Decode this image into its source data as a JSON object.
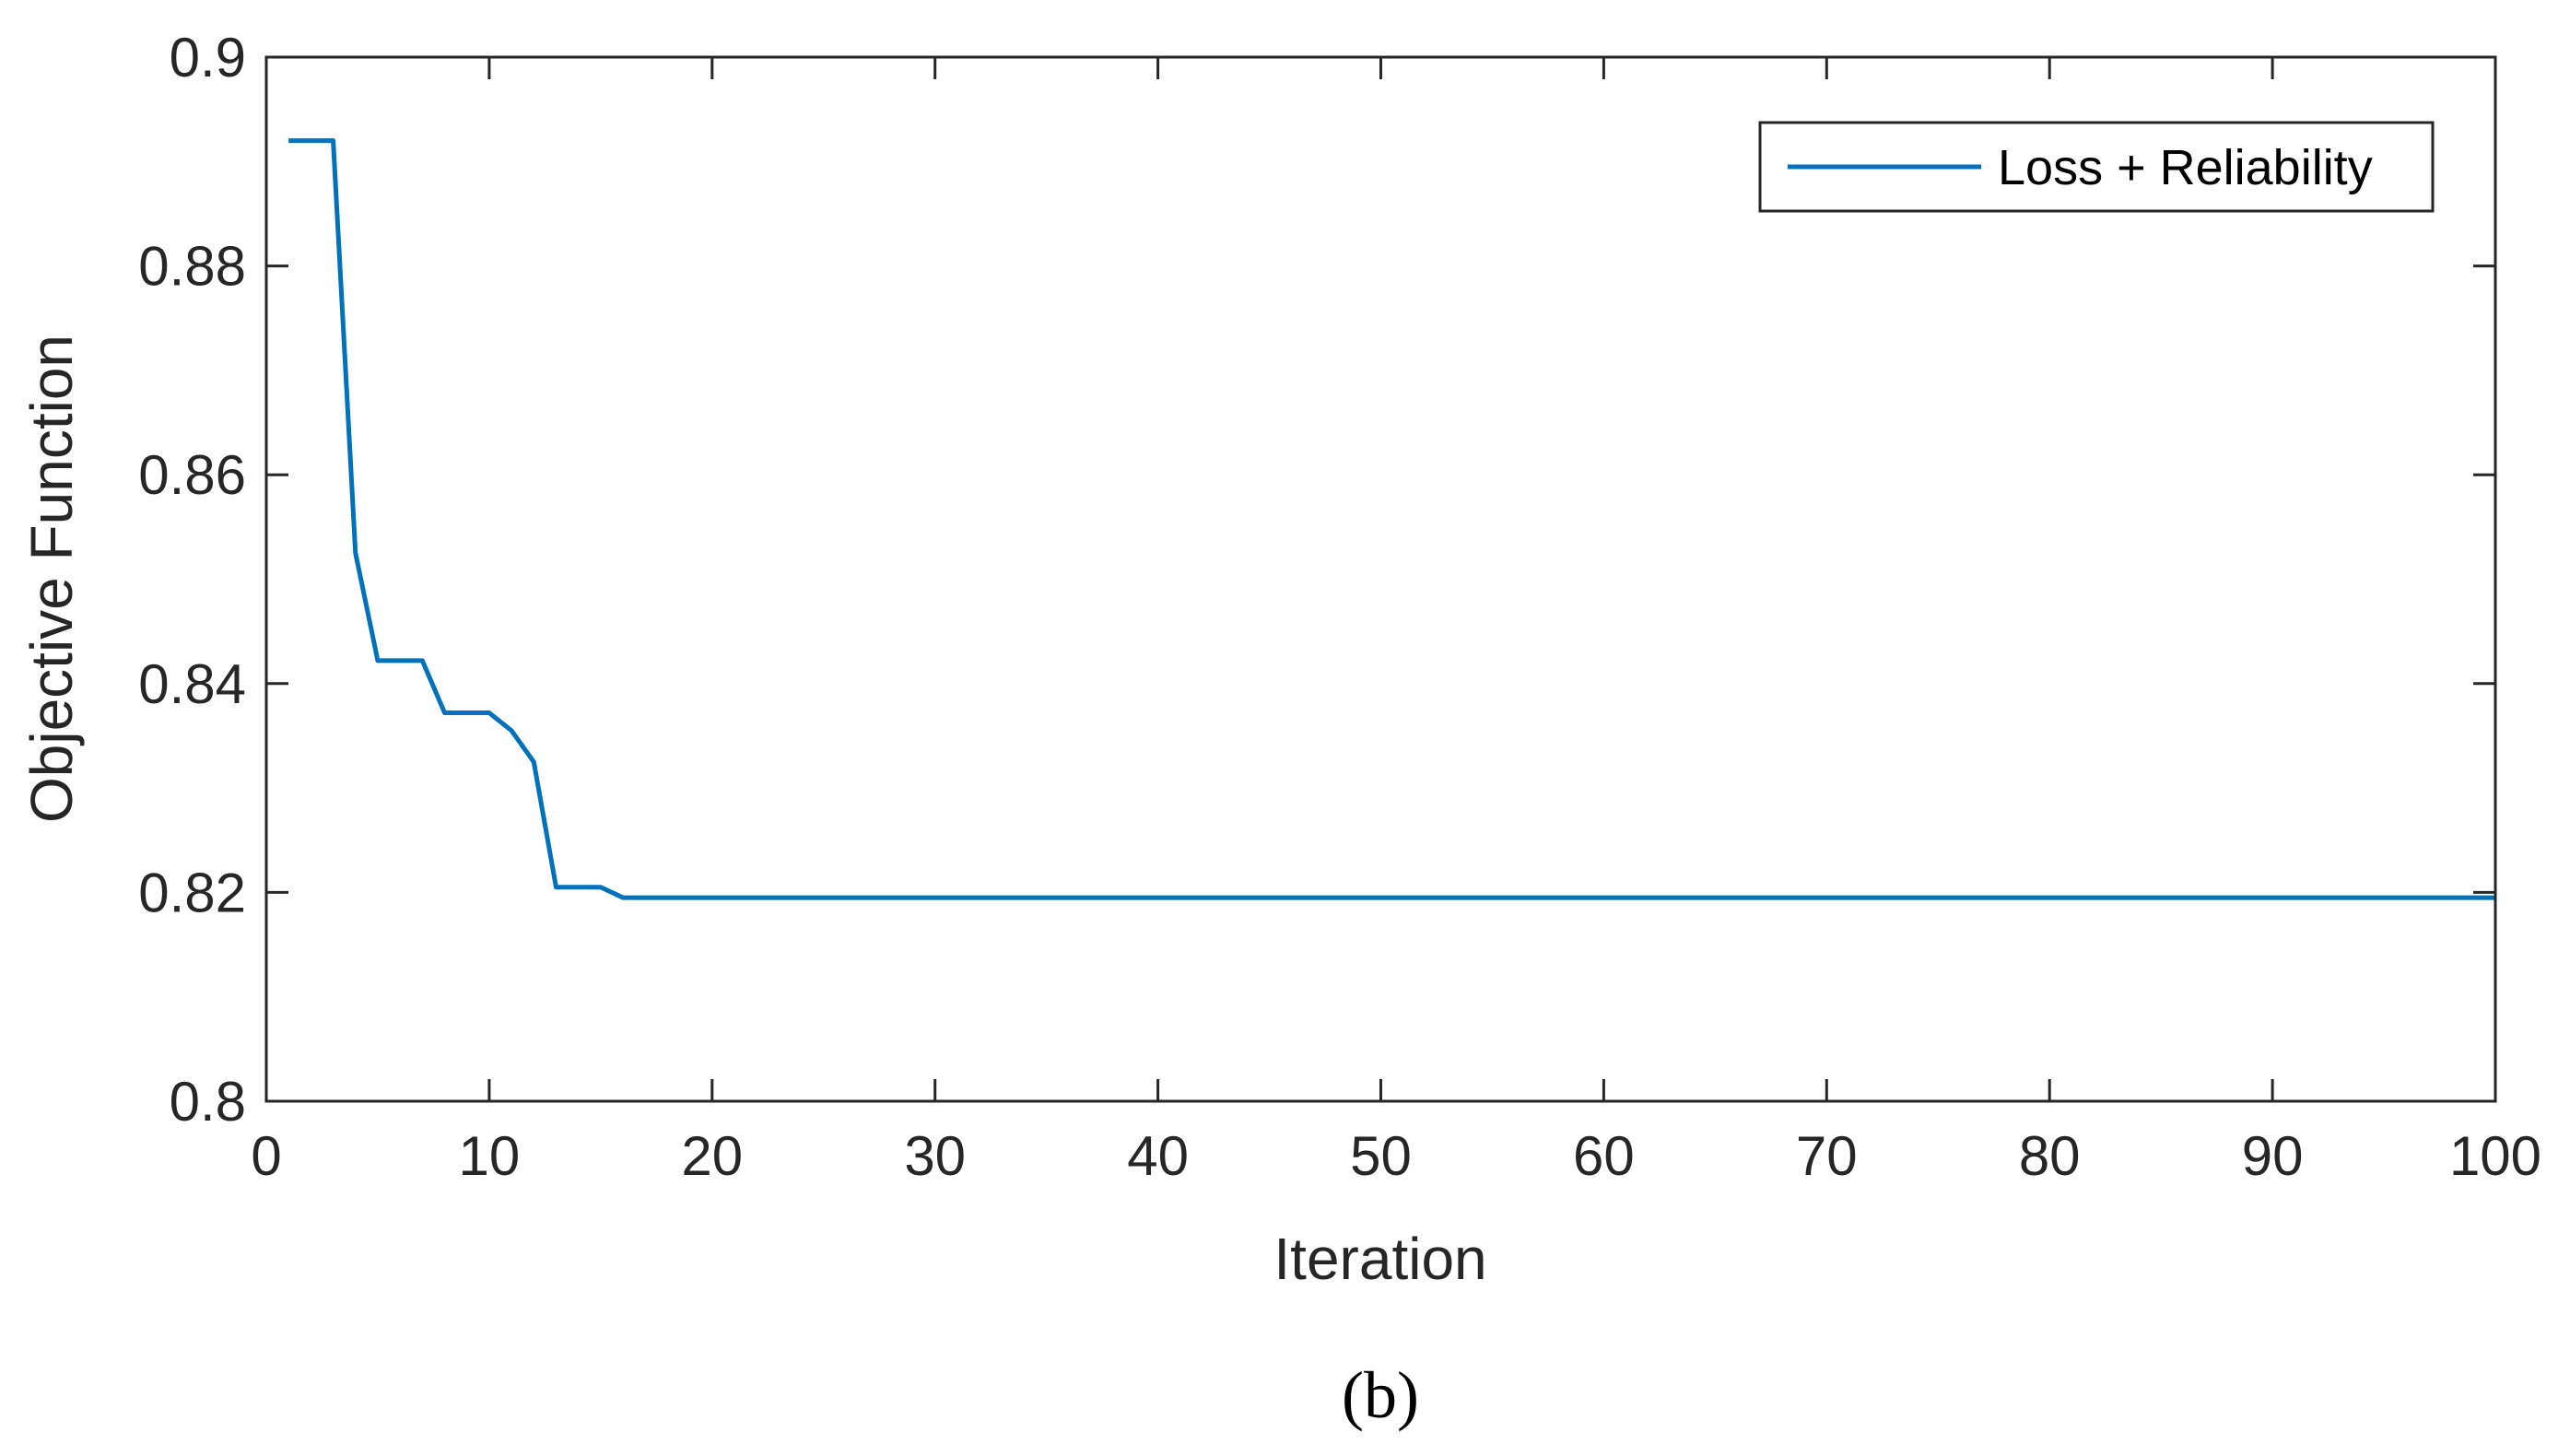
{
  "chart_data": {
    "type": "line",
    "xlabel": "Iteration",
    "ylabel": "Objective Function",
    "xlim": [
      0,
      100
    ],
    "ylim": [
      0.8,
      0.9
    ],
    "xticks": [
      0,
      10,
      20,
      30,
      40,
      50,
      60,
      70,
      80,
      90,
      100
    ],
    "xtick_labels": [
      "0",
      "10",
      "20",
      "30",
      "40",
      "50",
      "60",
      "70",
      "80",
      "90",
      "100"
    ],
    "yticks": [
      0.8,
      0.82,
      0.84,
      0.86,
      0.88,
      0.9
    ],
    "ytick_labels": [
      "0.8",
      "0.82",
      "0.84",
      "0.86",
      "0.88",
      "0.9"
    ],
    "grid": false,
    "legend_position": "top-right",
    "series": [
      {
        "name": "Loss + Reliability",
        "color": "#0072BD",
        "x": [
          1,
          2,
          3,
          4,
          5,
          6,
          7,
          8,
          9,
          10,
          11,
          12,
          13,
          14,
          15,
          16,
          17,
          18,
          19,
          20,
          21,
          22,
          23,
          24,
          25,
          26,
          27,
          28,
          29,
          30,
          31,
          32,
          33,
          34,
          35,
          36,
          37,
          38,
          39,
          40,
          41,
          42,
          43,
          44,
          45,
          46,
          47,
          48,
          49,
          50,
          51,
          52,
          53,
          54,
          55,
          56,
          57,
          58,
          59,
          60,
          61,
          62,
          63,
          64,
          65,
          66,
          67,
          68,
          69,
          70,
          71,
          72,
          73,
          74,
          75,
          76,
          77,
          78,
          79,
          80,
          81,
          82,
          83,
          84,
          85,
          86,
          87,
          88,
          89,
          90,
          91,
          92,
          93,
          94,
          95,
          96,
          97,
          98,
          99,
          100
        ],
        "y": [
          0.892,
          0.892,
          0.892,
          0.8525,
          0.8422,
          0.8422,
          0.8422,
          0.8372,
          0.8372,
          0.8372,
          0.8355,
          0.8325,
          0.8205,
          0.8205,
          0.8205,
          0.8195,
          0.8195,
          0.8195,
          0.8195,
          0.8195,
          0.8195,
          0.8195,
          0.8195,
          0.8195,
          0.8195,
          0.8195,
          0.8195,
          0.8195,
          0.8195,
          0.8195,
          0.8195,
          0.8195,
          0.8195,
          0.8195,
          0.8195,
          0.8195,
          0.8195,
          0.8195,
          0.8195,
          0.8195,
          0.8195,
          0.8195,
          0.8195,
          0.8195,
          0.8195,
          0.8195,
          0.8195,
          0.8195,
          0.8195,
          0.8195,
          0.8195,
          0.8195,
          0.8195,
          0.8195,
          0.8195,
          0.8195,
          0.8195,
          0.8195,
          0.8195,
          0.8195,
          0.8195,
          0.8195,
          0.8195,
          0.8195,
          0.8195,
          0.8195,
          0.8195,
          0.8195,
          0.8195,
          0.8195,
          0.8195,
          0.8195,
          0.8195,
          0.8195,
          0.8195,
          0.8195,
          0.8195,
          0.8195,
          0.8195,
          0.8195,
          0.8195,
          0.8195,
          0.8195,
          0.8195,
          0.8195,
          0.8195,
          0.8195,
          0.8195,
          0.8195,
          0.8195,
          0.8195,
          0.8195,
          0.8195,
          0.8195,
          0.8195,
          0.8195,
          0.8195,
          0.8195,
          0.8195,
          0.8195
        ]
      }
    ]
  },
  "caption": "(b)"
}
